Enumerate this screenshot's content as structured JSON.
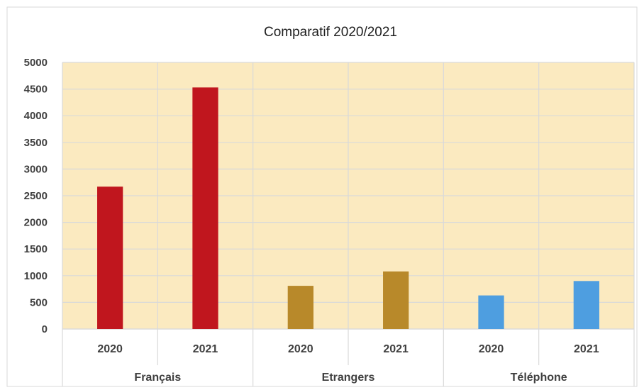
{
  "chart_data": {
    "type": "bar",
    "title": "Comparatif 2020/2021",
    "xlabel": "",
    "ylabel": "",
    "ylim": [
      0,
      5000
    ],
    "yticks": [
      0,
      500,
      1000,
      1500,
      2000,
      2500,
      3000,
      3500,
      4000,
      4500,
      5000
    ],
    "grid": true,
    "legend": "none",
    "groups": [
      {
        "name": "Français",
        "categories": [
          "2020",
          "2021"
        ],
        "values": [
          2670,
          4530
        ],
        "color": "#c0161e"
      },
      {
        "name": "Etrangers",
        "categories": [
          "2020",
          "2021"
        ],
        "values": [
          810,
          1080
        ],
        "color": "#b8892a"
      },
      {
        "name": "Téléphone",
        "categories": [
          "2020",
          "2021"
        ],
        "values": [
          630,
          900
        ],
        "color": "#4e9ee0"
      }
    ],
    "colors": {
      "plot_background": "#fbeac0",
      "gridline": "#d9d9d9",
      "frame": "#d9d9d9"
    }
  }
}
